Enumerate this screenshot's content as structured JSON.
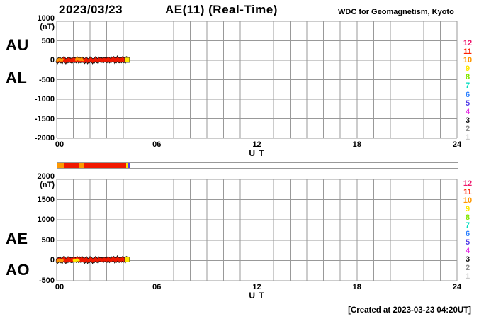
{
  "header": {
    "date": "2023/03/23",
    "title": "AE(11) (Real-Time)",
    "credit": "WDC for Geomagnetism, Kyoto"
  },
  "footer": {
    "created": "[Created at 2023-03-23 04:20UT]"
  },
  "panels": [
    {
      "left_labels": [
        "AU",
        "AL"
      ],
      "unit": "(nT)",
      "y_ticks": [
        "1000",
        "500",
        "0",
        "-500",
        "-1000",
        "-1500",
        "-2000"
      ],
      "x_ticks": [
        "00",
        "06",
        "12",
        "18",
        "24"
      ],
      "x_tick_hours": [
        0,
        6,
        12,
        18,
        24
      ],
      "x_label": "U T"
    },
    {
      "left_labels": [
        "AE",
        "AO"
      ],
      "unit": "(nT)",
      "y_ticks": [
        "2000",
        "1500",
        "1000",
        "500",
        "0",
        "-500"
      ],
      "x_ticks": [
        "00",
        "06",
        "12",
        "18",
        "24"
      ],
      "x_tick_hours": [
        0,
        6,
        12,
        18,
        24
      ],
      "x_label": "U T"
    }
  ],
  "legend": {
    "stations": [
      {
        "n": "12",
        "color": "#ee1a6e"
      },
      {
        "n": "11",
        "color": "#ff2000"
      },
      {
        "n": "10",
        "color": "#ff9800"
      },
      {
        "n": "9",
        "color": "#ffe800"
      },
      {
        "n": "8",
        "color": "#82e600"
      },
      {
        "n": "7",
        "color": "#00ddc0"
      },
      {
        "n": "6",
        "color": "#2a7fff"
      },
      {
        "n": "5",
        "color": "#5540e8"
      },
      {
        "n": "4",
        "color": "#e431e4"
      },
      {
        "n": "3",
        "color": "#111111"
      },
      {
        "n": "2",
        "color": "#8c8c8c"
      },
      {
        "n": "1",
        "color": "#c9c9c9"
      }
    ]
  },
  "colors": {
    "grid": "#999999",
    "trace": "#f01800",
    "trace_outline": "#111111",
    "orange": "#ff9800",
    "yellow": "#ffe800",
    "bar_border": "#999999"
  },
  "chart_data": {
    "type": "line",
    "title": "AE(11) (Real-Time)",
    "date": "2023/03/23",
    "x_unit": "hours UT",
    "x_range_hours": [
      0,
      24
    ],
    "x_tick_hours": [
      0,
      6,
      12,
      18,
      24
    ],
    "grid": "on",
    "data_end_hour": 4.33,
    "panels": [
      {
        "name": "AU-AL",
        "ylabel": "(nT)",
        "ylim": [
          -2000,
          1000
        ],
        "ytick_step": 500,
        "series": [
          {
            "name": "AU",
            "x": [
              0,
              0.3,
              0.7,
              1.0,
              1.25,
              1.45,
              1.8,
              2.2,
              2.6,
              3.0,
              3.4,
              3.8,
              4.1,
              4.33
            ],
            "y": [
              8,
              16,
              10,
              18,
              32,
              14,
              10,
              14,
              18,
              20,
              24,
              28,
              30,
              26
            ]
          },
          {
            "name": "AL",
            "x": [
              0,
              0.3,
              0.7,
              1.0,
              1.25,
              1.45,
              1.8,
              2.2,
              2.6,
              3.0,
              3.4,
              3.8,
              4.1,
              4.33
            ],
            "y": [
              -14,
              -8,
              -16,
              -10,
              -6,
              -18,
              -12,
              -10,
              -8,
              -6,
              -6,
              -8,
              -6,
              -10
            ]
          }
        ],
        "overlays": [
          {
            "series": "AU",
            "from": 0,
            "to": 0.4,
            "color": "#ff9800"
          },
          {
            "series": "AU",
            "from": 1.1,
            "to": 1.6,
            "color": "#ff9800"
          }
        ],
        "end_marker": {
          "hour": 4.22,
          "value": 8,
          "color": "#ffe800"
        }
      },
      {
        "name": "AE-AO",
        "ylabel": "(nT)",
        "ylim": [
          -500,
          2000
        ],
        "ytick_step": 500,
        "series": [
          {
            "name": "AE",
            "x": [
              0,
              0.3,
              0.7,
              1.0,
              1.25,
              1.45,
              1.8,
              2.2,
              2.6,
              3.0,
              3.4,
              3.8,
              4.1,
              4.33
            ],
            "y": [
              22,
              26,
              28,
              30,
              44,
              30,
              24,
              26,
              28,
              30,
              32,
              36,
              38,
              34
            ]
          },
          {
            "name": "AO",
            "x": [
              0,
              0.3,
              0.7,
              1.0,
              1.25,
              1.45,
              1.8,
              2.2,
              2.6,
              3.0,
              3.4,
              3.8,
              4.1,
              4.33
            ],
            "y": [
              -6,
              2,
              -4,
              4,
              12,
              -4,
              -2,
              2,
              6,
              8,
              8,
              10,
              12,
              8
            ]
          }
        ],
        "overlays": [
          {
            "series": "AO",
            "from": 0,
            "to": 0.4,
            "color": "#ff9800"
          },
          {
            "series": "AO",
            "from": 1.0,
            "to": 1.35,
            "color": "#ffe800"
          }
        ],
        "end_marker": {
          "hour": 4.22,
          "value": 26,
          "color": "#ffe800"
        }
      }
    ],
    "availability_bar": {
      "x_range_hours": [
        0,
        24
      ],
      "segments": [
        {
          "from": 0.0,
          "to": 0.38,
          "color": "#ff9800"
        },
        {
          "from": 0.38,
          "to": 1.32,
          "color": "#f01800"
        },
        {
          "from": 1.32,
          "to": 1.57,
          "color": "#ff9800"
        },
        {
          "from": 1.57,
          "to": 4.12,
          "color": "#f01800"
        },
        {
          "from": 4.12,
          "to": 4.25,
          "color": "#ffe800"
        },
        {
          "from": 4.25,
          "to": 4.33,
          "color": "#5540e8"
        }
      ]
    }
  }
}
